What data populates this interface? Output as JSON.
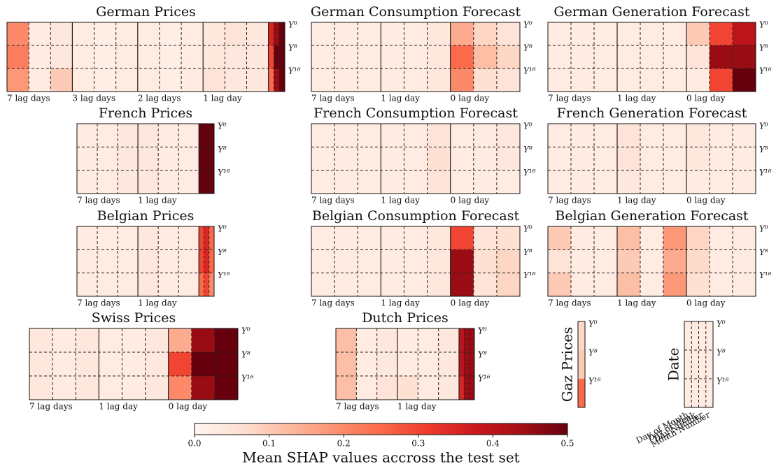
{
  "chart_data": [
    {
      "type": "heatmap",
      "title": "German Prices",
      "categories": [
        "7 lag days",
        "3 lag days",
        "2 lag days",
        "1 lag day",
        null
      ],
      "row_labels": [
        "Y⁰",
        "Y⁸",
        "Y¹⁶"
      ],
      "values": [
        [
          0.2,
          0.03,
          0.04,
          0.03,
          0.02,
          0.03,
          0.03,
          0.02,
          0.03,
          0.04,
          0.05,
          0.04,
          0.35,
          0.45,
          0.5
        ],
        [
          0.22,
          0.03,
          0.04,
          0.03,
          0.02,
          0.03,
          0.03,
          0.02,
          0.03,
          0.04,
          0.04,
          0.04,
          0.3,
          0.5,
          0.5
        ],
        [
          0.18,
          0.03,
          0.1,
          0.03,
          0.02,
          0.03,
          0.03,
          0.02,
          0.03,
          0.05,
          0.04,
          0.04,
          0.25,
          0.45,
          0.5
        ]
      ]
    },
    {
      "type": "heatmap",
      "title": "German Consumption Forecast",
      "categories": [
        "7 lag days",
        "1 lag day",
        "0 lag day"
      ],
      "row_labels": [
        "Y⁰",
        "Y⁸",
        "Y¹⁶"
      ],
      "values": [
        [
          0.03,
          0.03,
          0.03,
          0.03,
          0.03,
          0.04,
          0.15,
          0.08,
          0.05
        ],
        [
          0.03,
          0.03,
          0.03,
          0.03,
          0.03,
          0.04,
          0.25,
          0.12,
          0.08
        ],
        [
          0.03,
          0.03,
          0.03,
          0.03,
          0.03,
          0.04,
          0.2,
          0.06,
          0.05
        ]
      ]
    },
    {
      "type": "heatmap",
      "title": "German Generation Forecast",
      "categories": [
        "7 lag days",
        "1 lag day",
        "0 lag day"
      ],
      "row_labels": [
        "Y⁰",
        "Y⁸",
        "Y¹⁶"
      ],
      "values": [
        [
          0.03,
          0.03,
          0.03,
          0.03,
          0.03,
          0.03,
          0.1,
          0.3,
          0.4
        ],
        [
          0.03,
          0.03,
          0.03,
          0.03,
          0.03,
          0.03,
          0.05,
          0.45,
          0.45
        ],
        [
          0.03,
          0.03,
          0.03,
          0.03,
          0.03,
          0.03,
          0.03,
          0.3,
          0.5
        ]
      ]
    },
    {
      "type": "heatmap",
      "title": "French Prices",
      "categories": [
        "7 lag days",
        "1 lag day",
        null
      ],
      "row_labels": [
        "Y⁰",
        "Y⁸",
        "Y¹⁶"
      ],
      "values": [
        [
          0.03,
          0.03,
          0.04,
          0.04,
          0.03,
          0.03,
          0.5,
          0.5,
          0.5
        ],
        [
          0.03,
          0.03,
          0.04,
          0.04,
          0.03,
          0.03,
          0.5,
          0.5,
          0.5
        ],
        [
          0.03,
          0.03,
          0.04,
          0.04,
          0.03,
          0.03,
          0.5,
          0.5,
          0.5
        ]
      ]
    },
    {
      "type": "heatmap",
      "title": "French Consumption Forecast",
      "categories": [
        "7 lag days",
        "1 lag day",
        "0 lag day"
      ],
      "row_labels": [
        "Y⁰",
        "Y⁸",
        "Y¹⁶"
      ],
      "values": [
        [
          0.03,
          0.03,
          0.03,
          0.03,
          0.03,
          0.05,
          0.03,
          0.03,
          0.04
        ],
        [
          0.03,
          0.03,
          0.03,
          0.03,
          0.03,
          0.06,
          0.03,
          0.03,
          0.04
        ],
        [
          0.03,
          0.03,
          0.03,
          0.03,
          0.03,
          0.05,
          0.03,
          0.03,
          0.03
        ]
      ]
    },
    {
      "type": "heatmap",
      "title": "French Generation Forecast",
      "categories": [
        "7 lag days",
        "1 lag day",
        "0 lag day"
      ],
      "row_labels": [
        "Y⁰",
        "Y⁸",
        "Y¹⁶"
      ],
      "values": [
        [
          0.03,
          0.03,
          0.03,
          0.05,
          0.03,
          0.03,
          0.04,
          0.03,
          0.03
        ],
        [
          0.03,
          0.03,
          0.03,
          0.05,
          0.03,
          0.03,
          0.04,
          0.03,
          0.03
        ],
        [
          0.03,
          0.03,
          0.03,
          0.04,
          0.03,
          0.03,
          0.03,
          0.03,
          0.03
        ]
      ]
    },
    {
      "type": "heatmap",
      "title": "Belgian Prices",
      "categories": [
        "7 lag days",
        "1 lag day",
        null
      ],
      "row_labels": [
        "Y⁰",
        "Y⁸",
        "Y¹⁶"
      ],
      "values": [
        [
          0.03,
          0.03,
          0.03,
          0.04,
          0.03,
          0.03,
          0.3,
          0.35,
          0.25
        ],
        [
          0.03,
          0.03,
          0.03,
          0.04,
          0.03,
          0.03,
          0.3,
          0.35,
          0.25
        ],
        [
          0.03,
          0.03,
          0.03,
          0.04,
          0.03,
          0.03,
          0.25,
          0.3,
          0.2
        ]
      ]
    },
    {
      "type": "heatmap",
      "title": "Belgian Consumption Forecast",
      "categories": [
        "7 lag days",
        "1 lag day",
        "0 lag day"
      ],
      "row_labels": [
        "Y⁰",
        "Y⁸",
        "Y¹⁶"
      ],
      "values": [
        [
          0.03,
          0.03,
          0.03,
          0.03,
          0.03,
          0.04,
          0.3,
          0.05,
          0.06
        ],
        [
          0.03,
          0.03,
          0.03,
          0.03,
          0.03,
          0.04,
          0.45,
          0.06,
          0.08
        ],
        [
          0.03,
          0.03,
          0.03,
          0.03,
          0.03,
          0.04,
          0.45,
          0.05,
          0.08
        ]
      ]
    },
    {
      "type": "heatmap",
      "title": "Belgian Generation Forecast",
      "categories": [
        "7 lag days",
        "1 lag day",
        "0 lag day"
      ],
      "row_labels": [
        "Y⁰",
        "Y⁸",
        "Y¹⁶"
      ],
      "values": [
        [
          0.1,
          0.03,
          0.03,
          0.12,
          0.03,
          0.18,
          0.08,
          0.03,
          0.03
        ],
        [
          0.05,
          0.03,
          0.03,
          0.1,
          0.03,
          0.15,
          0.07,
          0.03,
          0.03
        ],
        [
          0.1,
          0.03,
          0.03,
          0.12,
          0.03,
          0.18,
          0.06,
          0.03,
          0.03
        ]
      ]
    },
    {
      "type": "heatmap",
      "title": "Swiss Prices",
      "categories": [
        "7 lag days",
        "1 lag day",
        "0 lag day"
      ],
      "row_labels": [
        "Y⁰",
        "Y⁸",
        "Y¹⁶"
      ],
      "values": [
        [
          0.04,
          0.03,
          0.04,
          0.03,
          0.03,
          0.04,
          0.15,
          0.45,
          0.5
        ],
        [
          0.04,
          0.03,
          0.04,
          0.03,
          0.03,
          0.04,
          0.3,
          0.5,
          0.5
        ],
        [
          0.04,
          0.03,
          0.04,
          0.03,
          0.03,
          0.04,
          0.2,
          0.45,
          0.5
        ]
      ]
    },
    {
      "type": "heatmap",
      "title": "Dutch Prices",
      "categories": [
        "7 lag days",
        "1 lag day",
        null
      ],
      "row_labels": [
        "Y⁰",
        "Y⁸",
        "Y¹⁶"
      ],
      "values": [
        [
          0.12,
          0.03,
          0.04,
          0.03,
          0.03,
          0.04,
          0.4,
          0.45,
          0.45
        ],
        [
          0.12,
          0.03,
          0.04,
          0.03,
          0.03,
          0.04,
          0.4,
          0.45,
          0.45
        ],
        [
          0.12,
          0.03,
          0.05,
          0.06,
          0.03,
          0.04,
          0.35,
          0.45,
          0.45
        ]
      ]
    },
    {
      "type": "heatmap",
      "ylabel": "Gaz Prices",
      "row_labels": [
        "Y⁰",
        "Y⁸",
        "Y¹⁶"
      ],
      "values": [
        [
          0.08
        ],
        [
          0.1
        ],
        [
          0.25
        ]
      ]
    },
    {
      "type": "heatmap",
      "ylabel": "Date",
      "categories": [
        "Day of Month",
        "Day of Week",
        "Day Number",
        "Month Number"
      ],
      "row_labels": [
        "Y⁰",
        "Y⁸",
        "Y¹⁶"
      ],
      "values": [
        [
          0.03,
          0.03,
          0.03,
          0.03
        ],
        [
          0.03,
          0.03,
          0.03,
          0.03
        ],
        [
          0.03,
          0.03,
          0.03,
          0.03
        ]
      ]
    },
    {
      "type": "colorbar",
      "label": "Mean SHAP values accross the test set",
      "lim": [
        0,
        0.5
      ],
      "ticks": [
        {
          "value": 0,
          "label": "0.0"
        },
        {
          "value": 0.1,
          "label": "0.1"
        },
        {
          "value": 0.2,
          "label": "0.2"
        },
        {
          "value": 0.3,
          "label": "0.3"
        },
        {
          "value": 0.4,
          "label": "0.4"
        },
        {
          "value": 0.5,
          "label": "0.5"
        }
      ]
    }
  ]
}
